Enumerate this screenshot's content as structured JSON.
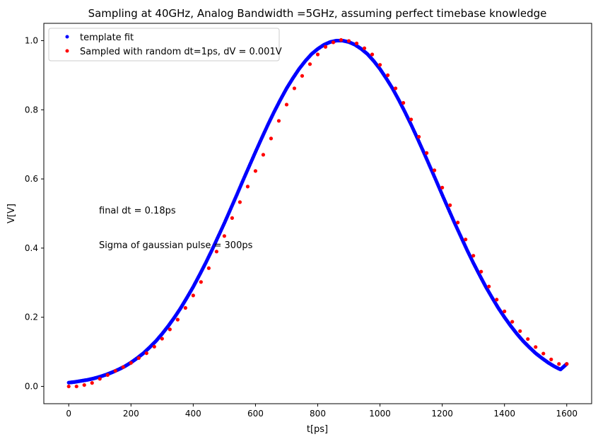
{
  "chart_data": {
    "type": "scatter",
    "title": "Sampling at 40GHz, Analog Bandwidth =5GHz, assuming perfect timebase knowledge",
    "xlabel": "t[ps]",
    "ylabel": "V[V]",
    "xlim": [
      -80,
      1680
    ],
    "ylim": [
      -0.05,
      1.05
    ],
    "xticks": [
      "0",
      "200",
      "400",
      "600",
      "800",
      "1000",
      "1200",
      "1400",
      "1600"
    ],
    "xtick_values": [
      0,
      200,
      400,
      600,
      800,
      1000,
      1200,
      1400,
      1600
    ],
    "yticks": [
      "0.0",
      "0.2",
      "0.4",
      "0.6",
      "0.8",
      "1.0"
    ],
    "ytick_values": [
      0.0,
      0.2,
      0.4,
      0.6,
      0.8,
      1.0
    ],
    "grid": false,
    "legend_position": "top-left",
    "series": [
      {
        "name": "template fit",
        "color": "#0000ff",
        "x": [
          0,
          20,
          40,
          60,
          80,
          100,
          120,
          140,
          160,
          180,
          200,
          220,
          240,
          260,
          280,
          300,
          320,
          340,
          360,
          380,
          400,
          420,
          440,
          460,
          480,
          500,
          520,
          540,
          560,
          580,
          600,
          620,
          640,
          660,
          680,
          700,
          720,
          740,
          760,
          780,
          800,
          820,
          840,
          860,
          880,
          900,
          920,
          940,
          960,
          980,
          1000,
          1020,
          1040,
          1060,
          1080,
          1100,
          1120,
          1140,
          1160,
          1180,
          1200,
          1220,
          1240,
          1260,
          1280,
          1300,
          1320,
          1340,
          1360,
          1380,
          1400,
          1420,
          1440,
          1460,
          1480,
          1500,
          1520,
          1540,
          1560,
          1580,
          1600
        ],
        "y": [
          0.011,
          0.013,
          0.016,
          0.019,
          0.023,
          0.028,
          0.034,
          0.041,
          0.049,
          0.058,
          0.069,
          0.082,
          0.096,
          0.113,
          0.131,
          0.152,
          0.175,
          0.2,
          0.227,
          0.257,
          0.288,
          0.322,
          0.357,
          0.394,
          0.433,
          0.472,
          0.513,
          0.554,
          0.596,
          0.637,
          0.678,
          0.718,
          0.757,
          0.794,
          0.829,
          0.862,
          0.891,
          0.918,
          0.941,
          0.961,
          0.976,
          0.988,
          0.996,
          1.0,
          1.0,
          0.996,
          0.988,
          0.976,
          0.961,
          0.941,
          0.918,
          0.891,
          0.862,
          0.829,
          0.794,
          0.757,
          0.718,
          0.678,
          0.637,
          0.596,
          0.554,
          0.513,
          0.472,
          0.433,
          0.394,
          0.357,
          0.322,
          0.288,
          0.257,
          0.227,
          0.2,
          0.175,
          0.152,
          0.131,
          0.113,
          0.096,
          0.082,
          0.069,
          0.058,
          0.049,
          0.065
        ]
      },
      {
        "name": "Sampled with random dt=1ps, dV = 0.001V",
        "color": "#ff0000",
        "x": [
          0,
          25,
          50,
          75,
          100,
          125,
          150,
          175,
          200,
          225,
          250,
          275,
          300,
          325,
          350,
          375,
          400,
          425,
          450,
          475,
          500,
          525,
          550,
          575,
          600,
          625,
          650,
          675,
          700,
          725,
          750,
          775,
          800,
          825,
          850,
          875,
          900,
          925,
          950,
          975,
          1000,
          1025,
          1050,
          1075,
          1100,
          1125,
          1150,
          1175,
          1200,
          1225,
          1250,
          1275,
          1300,
          1325,
          1350,
          1375,
          1400,
          1425,
          1450,
          1475,
          1500,
          1525,
          1550,
          1575,
          1600
        ],
        "y": [
          0.0,
          0.0,
          0.004,
          0.01,
          0.022,
          0.033,
          0.045,
          0.056,
          0.068,
          0.082,
          0.096,
          0.115,
          0.138,
          0.165,
          0.193,
          0.227,
          0.263,
          0.302,
          0.342,
          0.39,
          0.435,
          0.487,
          0.533,
          0.578,
          0.623,
          0.67,
          0.717,
          0.768,
          0.815,
          0.862,
          0.898,
          0.932,
          0.96,
          0.982,
          0.995,
          1.002,
          0.999,
          0.992,
          0.978,
          0.96,
          0.93,
          0.9,
          0.862,
          0.82,
          0.772,
          0.722,
          0.675,
          0.625,
          0.575,
          0.524,
          0.474,
          0.425,
          0.378,
          0.332,
          0.289,
          0.251,
          0.217,
          0.187,
          0.16,
          0.137,
          0.114,
          0.095,
          0.078,
          0.065,
          0.065
        ]
      }
    ],
    "annotations": [
      "final dt = 0.18ps",
      "Sigma of gaussian pulse = 300ps"
    ]
  }
}
